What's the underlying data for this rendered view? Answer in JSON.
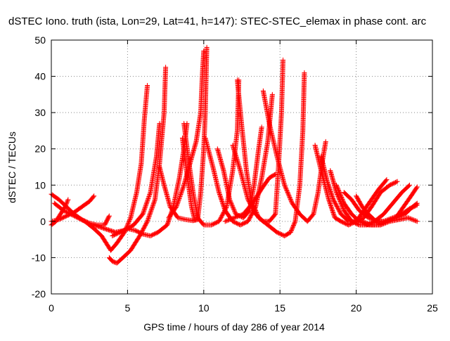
{
  "chart_data": {
    "type": "scatter",
    "title": "dSTEC Iono. truth (ista, Lon=29, Lat=41, h=147): STEC-STEC_elemax in phase cont. arc",
    "xlabel": "GPS time / hours of day 286 of year 2014",
    "ylabel": "dSTEC  / TECUs",
    "xlim": [
      0,
      25
    ],
    "ylim": [
      -20,
      50
    ],
    "x_ticks": [
      0,
      5,
      10,
      15,
      20,
      25
    ],
    "y_ticks": [
      -20,
      -10,
      0,
      10,
      20,
      30,
      40,
      50
    ],
    "grid": true,
    "marker": "plus",
    "color": "#ff0000",
    "series": [
      {
        "points": [
          [
            0.0,
            7.5
          ],
          [
            0.5,
            6
          ],
          [
            1.0,
            4
          ],
          [
            1.5,
            2
          ],
          [
            2.0,
            0.5
          ],
          [
            2.5,
            -0.5
          ],
          [
            3.0,
            -1
          ],
          [
            3.5,
            -1
          ],
          [
            3.8,
            1.5
          ]
        ]
      },
      {
        "points": [
          [
            0.0,
            -1
          ],
          [
            0.3,
            0
          ],
          [
            0.6,
            2
          ],
          [
            0.9,
            4
          ],
          [
            1.1,
            6
          ]
        ]
      },
      {
        "points": [
          [
            0.0,
            0
          ],
          [
            0.5,
            0.5
          ],
          [
            1.0,
            1.5
          ],
          [
            1.5,
            2.5
          ],
          [
            2.0,
            4
          ],
          [
            2.5,
            5.5
          ],
          [
            2.8,
            7
          ]
        ]
      },
      {
        "points": [
          [
            0.2,
            5
          ],
          [
            0.8,
            3
          ],
          [
            1.5,
            1.5
          ],
          [
            2.2,
            0
          ],
          [
            2.8,
            -2
          ],
          [
            3.3,
            -4
          ],
          [
            3.6,
            -6
          ],
          [
            3.9,
            -8
          ],
          [
            4.3,
            -6
          ],
          [
            4.8,
            -3
          ],
          [
            5.2,
            1
          ],
          [
            5.6,
            8
          ],
          [
            5.9,
            16
          ],
          [
            6.1,
            28
          ],
          [
            6.3,
            37.5
          ]
        ]
      },
      {
        "points": [
          [
            3.8,
            -10
          ],
          [
            4.0,
            -11
          ],
          [
            4.3,
            -11.5
          ],
          [
            4.7,
            -10
          ],
          [
            5.2,
            -8
          ],
          [
            5.8,
            -4
          ],
          [
            6.3,
            0
          ],
          [
            6.8,
            6
          ],
          [
            7.1,
            16
          ],
          [
            7.4,
            30
          ],
          [
            7.5,
            42.5
          ]
        ]
      },
      {
        "points": [
          [
            2.8,
            -1
          ],
          [
            3.5,
            -2
          ],
          [
            4.2,
            -3
          ],
          [
            4.8,
            -2.5
          ],
          [
            5.4,
            -1
          ],
          [
            6.0,
            2
          ],
          [
            6.5,
            8
          ],
          [
            6.9,
            18
          ],
          [
            7.1,
            27
          ]
        ]
      },
      {
        "points": [
          [
            4.0,
            -4
          ],
          [
            4.5,
            -3
          ],
          [
            5.0,
            -2
          ],
          [
            5.5,
            -2.5
          ],
          [
            6.0,
            -3.5
          ],
          [
            6.5,
            -4
          ],
          [
            7.0,
            -3
          ],
          [
            7.6,
            -1
          ],
          [
            8.0,
            4
          ],
          [
            8.4,
            12
          ],
          [
            8.7,
            20
          ],
          [
            8.9,
            27
          ]
        ]
      },
      {
        "points": [
          [
            7.1,
            15
          ],
          [
            7.4,
            10
          ],
          [
            7.8,
            4
          ],
          [
            8.3,
            1
          ],
          [
            8.8,
            0.5
          ],
          [
            9.3,
            0.2
          ],
          [
            9.6,
            0.5
          ],
          [
            9.8,
            8
          ],
          [
            10.0,
            20
          ],
          [
            10.1,
            30
          ],
          [
            10.2,
            48
          ]
        ]
      },
      {
        "points": [
          [
            7.7,
            1
          ],
          [
            8.2,
            4
          ],
          [
            8.7,
            10
          ],
          [
            9.1,
            16
          ],
          [
            9.5,
            22
          ],
          [
            9.8,
            30
          ],
          [
            9.9,
            40
          ],
          [
            10.0,
            47
          ]
        ]
      },
      {
        "points": [
          [
            8.7,
            27
          ],
          [
            9.0,
            17
          ],
          [
            9.3,
            8
          ],
          [
            9.6,
            1
          ],
          [
            10.0,
            -1
          ],
          [
            10.5,
            -1
          ],
          [
            11.0,
            0
          ],
          [
            11.5,
            4
          ],
          [
            11.9,
            14
          ],
          [
            12.2,
            25
          ],
          [
            12.3,
            39
          ]
        ]
      },
      {
        "points": [
          [
            8.6,
            23
          ],
          [
            8.9,
            13
          ],
          [
            9.2,
            4
          ],
          [
            9.4,
            0.5
          ]
        ]
      },
      {
        "points": [
          [
            10.1,
            23
          ],
          [
            10.6,
            15
          ],
          [
            11.0,
            8
          ],
          [
            11.4,
            3
          ],
          [
            11.9,
            0
          ],
          [
            12.4,
            -1
          ],
          [
            12.9,
            0
          ],
          [
            13.4,
            4
          ],
          [
            13.8,
            12
          ],
          [
            14.2,
            22
          ],
          [
            14.5,
            35
          ]
        ]
      },
      {
        "points": [
          [
            12.2,
            39
          ],
          [
            12.5,
            26
          ],
          [
            12.8,
            14
          ],
          [
            13.1,
            6
          ],
          [
            13.6,
            1
          ],
          [
            14.2,
            -1
          ],
          [
            14.8,
            -3
          ],
          [
            15.3,
            -4
          ],
          [
            15.7,
            -3
          ],
          [
            16.0,
            0
          ],
          [
            16.3,
            10
          ],
          [
            16.5,
            25
          ],
          [
            16.6,
            41
          ]
        ]
      },
      {
        "points": [
          [
            11.9,
            21
          ],
          [
            12.4,
            14
          ],
          [
            12.9,
            6
          ],
          [
            13.4,
            2
          ],
          [
            13.9,
            0
          ],
          [
            14.3,
            0
          ],
          [
            14.7,
            2
          ],
          [
            14.9,
            15
          ],
          [
            15.1,
            30
          ],
          [
            15.2,
            44.5
          ]
        ]
      },
      {
        "points": [
          [
            10.9,
            20
          ],
          [
            11.3,
            14
          ],
          [
            11.7,
            6
          ],
          [
            12.1,
            2
          ],
          [
            12.6,
            1
          ],
          [
            13.0,
            3
          ],
          [
            13.3,
            10
          ],
          [
            13.6,
            20
          ],
          [
            13.8,
            26
          ]
        ]
      },
      {
        "points": [
          [
            13.9,
            36
          ],
          [
            14.3,
            27
          ],
          [
            14.8,
            18
          ],
          [
            15.3,
            10
          ],
          [
            15.8,
            5
          ],
          [
            16.3,
            2
          ],
          [
            16.8,
            0
          ],
          [
            17.2,
            2
          ],
          [
            17.5,
            8
          ],
          [
            17.8,
            17
          ],
          [
            18.0,
            22
          ]
        ]
      },
      {
        "points": [
          [
            11.4,
            0
          ],
          [
            12.0,
            1
          ],
          [
            12.6,
            2
          ],
          [
            13.2,
            5
          ],
          [
            13.8,
            9
          ],
          [
            14.3,
            12
          ],
          [
            14.7,
            13
          ]
        ]
      },
      {
        "points": [
          [
            17.3,
            21
          ],
          [
            17.7,
            14
          ],
          [
            18.2,
            6
          ],
          [
            18.6,
            1
          ],
          [
            19.0,
            0
          ],
          [
            19.5,
            -1
          ],
          [
            20.0,
            0
          ],
          [
            20.5,
            3
          ],
          [
            21.0,
            6
          ],
          [
            21.5,
            9
          ],
          [
            22.0,
            11.5
          ]
        ]
      },
      {
        "points": [
          [
            17.7,
            18
          ],
          [
            18.1,
            11
          ],
          [
            18.5,
            6
          ],
          [
            19.0,
            2
          ],
          [
            19.5,
            0
          ],
          [
            20.0,
            0
          ],
          [
            20.5,
            1
          ],
          [
            21.0,
            4
          ],
          [
            21.6,
            8
          ],
          [
            22.2,
            10
          ],
          [
            22.7,
            11
          ]
        ]
      },
      {
        "points": [
          [
            18.3,
            14
          ],
          [
            18.7,
            8
          ],
          [
            19.2,
            3
          ],
          [
            19.7,
            0
          ],
          [
            20.2,
            -1
          ],
          [
            20.7,
            -1
          ],
          [
            21.2,
            0
          ],
          [
            21.8,
            2
          ],
          [
            22.4,
            5
          ],
          [
            23.0,
            8
          ],
          [
            23.5,
            10
          ]
        ]
      },
      {
        "points": [
          [
            18.7,
            10
          ],
          [
            19.2,
            5
          ],
          [
            19.7,
            2
          ],
          [
            20.2,
            0
          ],
          [
            20.8,
            -1
          ],
          [
            21.4,
            -1
          ],
          [
            22.0,
            0
          ],
          [
            22.6,
            1
          ],
          [
            23.1,
            4
          ],
          [
            23.6,
            7
          ],
          [
            24.0,
            9.5
          ]
        ]
      },
      {
        "points": [
          [
            19.2,
            8
          ],
          [
            19.7,
            6
          ],
          [
            20.2,
            3
          ],
          [
            20.8,
            1
          ],
          [
            21.4,
            0
          ],
          [
            22.0,
            0
          ],
          [
            22.6,
            1
          ],
          [
            23.2,
            2
          ],
          [
            23.7,
            4
          ],
          [
            24.0,
            5
          ]
        ]
      },
      {
        "points": [
          [
            20.4,
            0
          ],
          [
            21.0,
            -1
          ],
          [
            21.6,
            -1
          ],
          [
            22.2,
            0
          ],
          [
            22.8,
            0.5
          ],
          [
            23.4,
            1
          ],
          [
            24.0,
            0
          ]
        ]
      },
      {
        "points": [
          [
            20.0,
            7
          ],
          [
            20.4,
            4
          ],
          [
            20.8,
            2
          ],
          [
            21.3,
            0
          ],
          [
            21.8,
            0
          ],
          [
            22.4,
            1
          ],
          [
            23.0,
            2
          ],
          [
            23.5,
            3.5
          ],
          [
            24.0,
            4.5
          ]
        ]
      }
    ]
  }
}
